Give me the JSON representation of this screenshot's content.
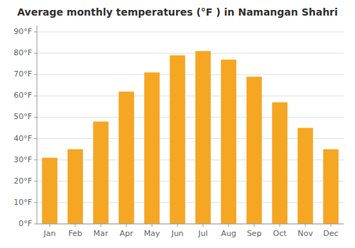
{
  "chart_data": {
    "type": "bar",
    "title": "Average monthly temperatures (°F ) in Namangan Shahri",
    "categories": [
      "Jan",
      "Feb",
      "Mar",
      "Apr",
      "May",
      "Jun",
      "Jul",
      "Aug",
      "Sep",
      "Oct",
      "Nov",
      "Dec"
    ],
    "values": [
      31,
      35,
      48,
      62,
      71,
      79,
      81,
      77,
      69,
      57,
      45,
      35
    ],
    "color": "#F5A623",
    "ylim": [
      0,
      93
    ],
    "yticks": [
      {
        "value": 0,
        "label": "0°F"
      },
      {
        "value": 10,
        "label": "10°F"
      },
      {
        "value": 20,
        "label": "20°F"
      },
      {
        "value": 30,
        "label": "30°F"
      },
      {
        "value": 40,
        "label": "40°F"
      },
      {
        "value": 50,
        "label": "50°F"
      },
      {
        "value": 60,
        "label": "60°F"
      },
      {
        "value": 70,
        "label": "70°F"
      },
      {
        "value": 80,
        "label": "80°F"
      },
      {
        "value": 90,
        "label": "90°F"
      }
    ],
    "grid": true
  }
}
